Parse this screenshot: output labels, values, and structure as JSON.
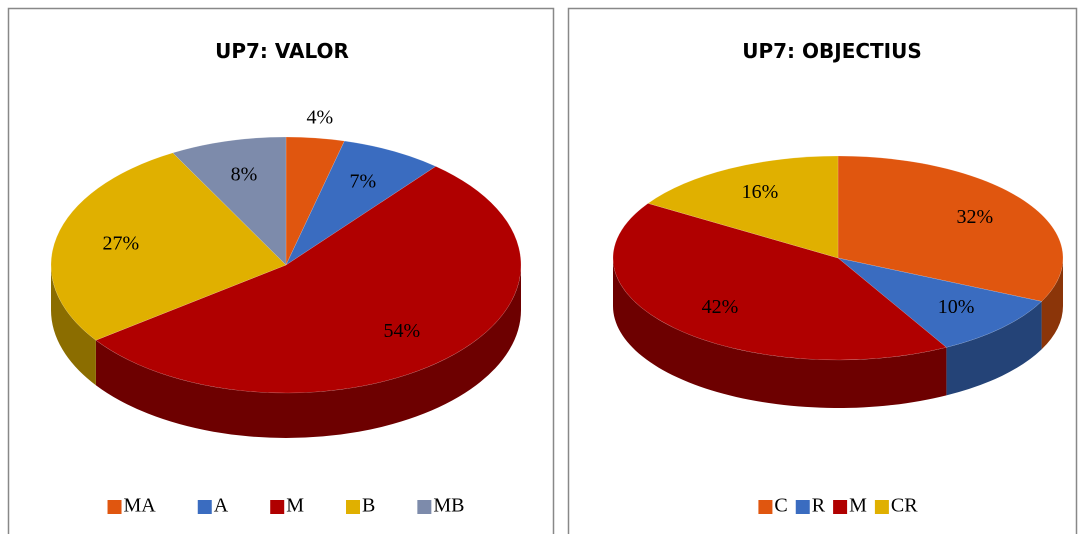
{
  "chart_data": [
    {
      "type": "pie",
      "title": "UP7: VALOR",
      "categories": [
        "MA",
        "A",
        "M",
        "B",
        "MB"
      ],
      "values": [
        4,
        7,
        54,
        27,
        8
      ],
      "value_labels": [
        "4%",
        "7%",
        "54%",
        "27%",
        "8%"
      ],
      "colors": [
        "#e0560f",
        "#3a6cc0",
        "#b00000",
        "#e0b000",
        "#7d8bab"
      ]
    },
    {
      "type": "pie",
      "title": "UP7: OBJECTIUS",
      "categories": [
        "C",
        "R",
        "M",
        "CR"
      ],
      "values": [
        32,
        10,
        42,
        16
      ],
      "value_labels": [
        "32%",
        "10%",
        "42%",
        "16%"
      ],
      "colors": [
        "#e0560f",
        "#3a6cc0",
        "#b00000",
        "#e0b000"
      ]
    }
  ]
}
